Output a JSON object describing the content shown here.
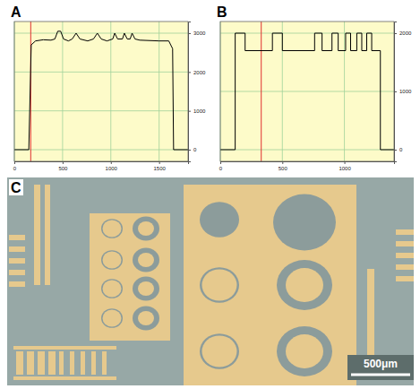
{
  "chart_data": [
    {
      "panel": "A",
      "type": "line",
      "color": "#000000",
      "grid": true,
      "x": [
        0,
        150,
        175,
        220,
        300,
        380,
        420,
        450,
        480,
        510,
        560,
        600,
        640,
        680,
        760,
        820,
        860,
        900,
        960,
        1020,
        1040,
        1070,
        1120,
        1140,
        1170,
        1200,
        1220,
        1250,
        1300,
        1500,
        1600,
        1640,
        1650,
        1800
      ],
      "values": [
        0,
        0,
        2700,
        2800,
        2830,
        2820,
        2850,
        3050,
        3050,
        2850,
        2800,
        2850,
        3000,
        2850,
        2800,
        2850,
        3000,
        2850,
        2800,
        2850,
        3000,
        2850,
        2850,
        3000,
        2850,
        2850,
        3000,
        2850,
        2820,
        2800,
        2800,
        2600,
        0,
        0
      ],
      "xlim": [
        0,
        1800
      ],
      "ylim": [
        -300,
        3300
      ],
      "xticks": [
        0,
        500,
        1000,
        1500
      ],
      "yticks": [
        0,
        1000,
        2000,
        3000
      ],
      "cursor_x": 170
    },
    {
      "panel": "B",
      "type": "line",
      "color": "#000000",
      "grid": true,
      "x": [
        0,
        120,
        120,
        200,
        200,
        420,
        420,
        500,
        500,
        760,
        760,
        820,
        820,
        900,
        900,
        950,
        950,
        1010,
        1010,
        1050,
        1050,
        1100,
        1100,
        1140,
        1140,
        1180,
        1180,
        1220,
        1220,
        1290,
        1290,
        1400
      ],
      "values": [
        0,
        0,
        2000,
        2000,
        1700,
        1700,
        2000,
        2000,
        1700,
        1700,
        2000,
        2000,
        1700,
        1700,
        2000,
        2000,
        1700,
        1700,
        2000,
        2000,
        1700,
        1700,
        2000,
        2000,
        1700,
        1700,
        2000,
        2000,
        1700,
        1700,
        0,
        0
      ],
      "xlim": [
        0,
        1400
      ],
      "ylim": [
        -200,
        2200
      ],
      "xticks": [
        0,
        500,
        1000
      ],
      "yticks": [
        0,
        1000,
        2000
      ],
      "cursor_x": 330
    }
  ],
  "micrograph": {
    "panel": "C",
    "scale_bar": "500μm"
  }
}
